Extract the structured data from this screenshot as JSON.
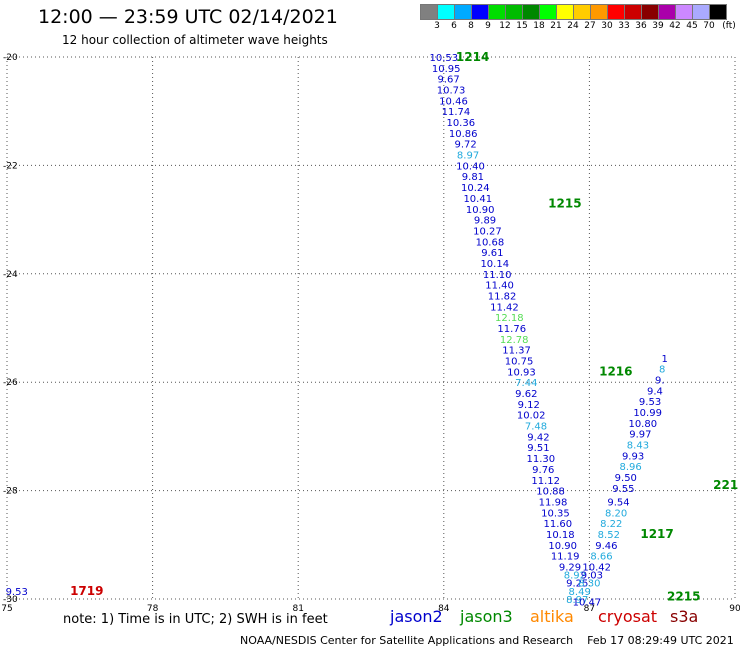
{
  "header": {
    "title": "12:00 — 23:59 UTC 02/14/2021",
    "subtitle": "12 hour collection of altimeter wave heights"
  },
  "colorbar": {
    "unit": "(ft)",
    "labels": [
      "3",
      "6",
      "8",
      "9",
      "12",
      "15",
      "18",
      "21",
      "24",
      "27",
      "30",
      "33",
      "36",
      "39",
      "42",
      "45",
      "70"
    ],
    "colors": [
      "#808080",
      "#00ffff",
      "#00aaff",
      "#0000ff",
      "#00dd00",
      "#00bb00",
      "#008800",
      "#00ff00",
      "#ffff00",
      "#ffcc00",
      "#ff9900",
      "#ff0000",
      "#cc0000",
      "#880000",
      "#aa00aa",
      "#cc88ff",
      "#aaaaff",
      "#000000"
    ]
  },
  "map": {
    "lon_ticks": [
      "75",
      "78",
      "81",
      "84",
      "87",
      "90"
    ],
    "lat_ticks": [
      "-20",
      "-22",
      "-24",
      "-26",
      "-28",
      "-30"
    ],
    "lon_range": [
      75,
      90
    ],
    "lat_range": [
      -20,
      -30
    ]
  },
  "tracks": [
    {
      "label": "1214",
      "satellite": "jason3",
      "lon": 84.25,
      "lat": -20.0
    },
    {
      "label": "1215",
      "satellite": "jason3",
      "lon": 86.15,
      "lat": -22.7
    },
    {
      "label": "1216",
      "satellite": "jason3",
      "lon": 87.2,
      "lat": -25.8
    },
    {
      "label": "1217",
      "satellite": "jason3",
      "lon": 88.05,
      "lat": -28.8
    },
    {
      "label": "2215",
      "satellite": "jason3",
      "lon": 88.6,
      "lat": -29.95
    },
    {
      "label": "221",
      "satellite": "jason3",
      "lon": 89.55,
      "lat": -27.9
    },
    {
      "label": "1719",
      "satellite": "cryosat",
      "lon": 76.3,
      "lat": -29.85
    }
  ],
  "observations": [
    {
      "v": "10.53",
      "lon": 84.0,
      "lat": -20.0,
      "c": "#0000cc"
    },
    {
      "v": "10.95",
      "lon": 84.05,
      "lat": -20.2,
      "c": "#0000cc"
    },
    {
      "v": "9.67",
      "lon": 84.1,
      "lat": -20.4,
      "c": "#0000cc"
    },
    {
      "v": "10.73",
      "lon": 84.15,
      "lat": -20.6,
      "c": "#0000cc"
    },
    {
      "v": "10.46",
      "lon": 84.2,
      "lat": -20.8,
      "c": "#0000cc"
    },
    {
      "v": "11.74",
      "lon": 84.25,
      "lat": -21.0,
      "c": "#0000cc"
    },
    {
      "v": "10.36",
      "lon": 84.35,
      "lat": -21.2,
      "c": "#0000cc"
    },
    {
      "v": "10.86",
      "lon": 84.4,
      "lat": -21.4,
      "c": "#0000cc"
    },
    {
      "v": "9.72",
      "lon": 84.45,
      "lat": -21.6,
      "c": "#0000cc"
    },
    {
      "v": "8.97",
      "lon": 84.5,
      "lat": -21.8,
      "c": "#22aadd"
    },
    {
      "v": "10.40",
      "lon": 84.55,
      "lat": -22.0,
      "c": "#0000cc"
    },
    {
      "v": "9.81",
      "lon": 84.6,
      "lat": -22.2,
      "c": "#0000cc"
    },
    {
      "v": "10.24",
      "lon": 84.65,
      "lat": -22.4,
      "c": "#0000cc"
    },
    {
      "v": "10.41",
      "lon": 84.7,
      "lat": -22.6,
      "c": "#0000cc"
    },
    {
      "v": "10.90",
      "lon": 84.75,
      "lat": -22.8,
      "c": "#0000cc"
    },
    {
      "v": "9.89",
      "lon": 84.85,
      "lat": -23.0,
      "c": "#0000cc"
    },
    {
      "v": "10.27",
      "lon": 84.9,
      "lat": -23.2,
      "c": "#0000cc"
    },
    {
      "v": "10.68",
      "lon": 84.95,
      "lat": -23.4,
      "c": "#0000cc"
    },
    {
      "v": "9.61",
      "lon": 85.0,
      "lat": -23.6,
      "c": "#0000cc"
    },
    {
      "v": "10.14",
      "lon": 85.05,
      "lat": -23.8,
      "c": "#0000cc"
    },
    {
      "v": "11.10",
      "lon": 85.1,
      "lat": -24.0,
      "c": "#0000cc"
    },
    {
      "v": "11.40",
      "lon": 85.15,
      "lat": -24.2,
      "c": "#0000cc"
    },
    {
      "v": "11.82",
      "lon": 85.2,
      "lat": -24.4,
      "c": "#0000cc"
    },
    {
      "v": "11.42",
      "lon": 85.25,
      "lat": -24.6,
      "c": "#0000cc"
    },
    {
      "v": "12.18",
      "lon": 85.35,
      "lat": -24.8,
      "c": "#55dd55"
    },
    {
      "v": "11.76",
      "lon": 85.4,
      "lat": -25.0,
      "c": "#0000cc"
    },
    {
      "v": "12.78",
      "lon": 85.45,
      "lat": -25.2,
      "c": "#55dd55"
    },
    {
      "v": "11.37",
      "lon": 85.5,
      "lat": -25.4,
      "c": "#0000cc"
    },
    {
      "v": "10.75",
      "lon": 85.55,
      "lat": -25.6,
      "c": "#0000cc"
    },
    {
      "v": "10.93",
      "lon": 85.6,
      "lat": -25.8,
      "c": "#0000cc"
    },
    {
      "v": "7.44",
      "lon": 85.7,
      "lat": -26.0,
      "c": "#22aadd"
    },
    {
      "v": "9.62",
      "lon": 85.7,
      "lat": -26.2,
      "c": "#0000cc"
    },
    {
      "v": "9.12",
      "lon": 85.75,
      "lat": -26.4,
      "c": "#0000cc"
    },
    {
      "v": "10.02",
      "lon": 85.8,
      "lat": -26.6,
      "c": "#0000cc"
    },
    {
      "v": "7.48",
      "lon": 85.9,
      "lat": -26.8,
      "c": "#22aadd"
    },
    {
      "v": "9.42",
      "lon": 85.95,
      "lat": -27.0,
      "c": "#0000cc"
    },
    {
      "v": "9.51",
      "lon": 85.95,
      "lat": -27.2,
      "c": "#0000cc"
    },
    {
      "v": "11.30",
      "lon": 86.0,
      "lat": -27.4,
      "c": "#0000cc"
    },
    {
      "v": "9.76",
      "lon": 86.05,
      "lat": -27.6,
      "c": "#0000cc"
    },
    {
      "v": "11.12",
      "lon": 86.1,
      "lat": -27.8,
      "c": "#0000cc"
    },
    {
      "v": "10.88",
      "lon": 86.2,
      "lat": -28.0,
      "c": "#0000cc"
    },
    {
      "v": "11.98",
      "lon": 86.25,
      "lat": -28.2,
      "c": "#0000cc"
    },
    {
      "v": "10.35",
      "lon": 86.3,
      "lat": -28.4,
      "c": "#0000cc"
    },
    {
      "v": "11.60",
      "lon": 86.35,
      "lat": -28.6,
      "c": "#0000cc"
    },
    {
      "v": "10.18",
      "lon": 86.4,
      "lat": -28.8,
      "c": "#0000cc"
    },
    {
      "v": "10.90",
      "lon": 86.45,
      "lat": -29.0,
      "c": "#0000cc"
    },
    {
      "v": "11.19",
      "lon": 86.5,
      "lat": -29.2,
      "c": "#0000cc"
    },
    {
      "v": "9.29",
      "lon": 86.6,
      "lat": -29.4,
      "c": "#0000cc"
    },
    {
      "v": "8.92",
      "lon": 86.7,
      "lat": -29.55,
      "c": "#22aadd"
    },
    {
      "v": "9.25",
      "lon": 86.75,
      "lat": -29.7,
      "c": "#0000cc"
    },
    {
      "v": "8.49",
      "lon": 86.8,
      "lat": -29.85,
      "c": "#22aadd"
    },
    {
      "v": "8.97",
      "lon": 86.75,
      "lat": -30.0,
      "c": "#22aadd"
    },
    {
      "v": "10.47",
      "lon": 86.95,
      "lat": -30.05,
      "c": "#0000cc"
    },
    {
      "v": "8.30",
      "lon": 87.0,
      "lat": -29.7,
      "c": "#22aadd"
    },
    {
      "v": "9.03",
      "lon": 87.05,
      "lat": -29.55,
      "c": "#0000cc"
    },
    {
      "v": "10.42",
      "lon": 87.15,
      "lat": -29.4,
      "c": "#0000cc"
    },
    {
      "v": "8.66",
      "lon": 87.25,
      "lat": -29.2,
      "c": "#22aadd"
    },
    {
      "v": "9.46",
      "lon": 87.35,
      "lat": -29.0,
      "c": "#0000cc"
    },
    {
      "v": "8.52",
      "lon": 87.4,
      "lat": -28.8,
      "c": "#22aadd"
    },
    {
      "v": "8.22",
      "lon": 87.45,
      "lat": -28.6,
      "c": "#22aadd"
    },
    {
      "v": "8.20",
      "lon": 87.55,
      "lat": -28.4,
      "c": "#22aadd"
    },
    {
      "v": "9.54",
      "lon": 87.6,
      "lat": -28.2,
      "c": "#0000cc"
    },
    {
      "v": "9.55",
      "lon": 87.7,
      "lat": -27.95,
      "c": "#0000cc"
    },
    {
      "v": "9.50",
      "lon": 87.75,
      "lat": -27.75,
      "c": "#0000cc"
    },
    {
      "v": "8.96",
      "lon": 87.85,
      "lat": -27.55,
      "c": "#22aadd"
    },
    {
      "v": "9.93",
      "lon": 87.9,
      "lat": -27.35,
      "c": "#0000cc"
    },
    {
      "v": "8.43",
      "lon": 88.0,
      "lat": -27.15,
      "c": "#22aadd"
    },
    {
      "v": "9.97",
      "lon": 88.05,
      "lat": -26.95,
      "c": "#0000cc"
    },
    {
      "v": "10.80",
      "lon": 88.1,
      "lat": -26.75,
      "c": "#0000cc"
    },
    {
      "v": "10.99",
      "lon": 88.2,
      "lat": -26.55,
      "c": "#0000cc"
    },
    {
      "v": "9.53",
      "lon": 88.25,
      "lat": -26.35,
      "c": "#0000cc"
    },
    {
      "v": "9.4",
      "lon": 88.35,
      "lat": -26.15,
      "c": "#0000cc"
    },
    {
      "v": "9.",
      "lon": 88.45,
      "lat": -25.95,
      "c": "#0000cc"
    },
    {
      "v": "8",
      "lon": 88.5,
      "lat": -25.75,
      "c": "#22aadd"
    },
    {
      "v": "1",
      "lon": 88.55,
      "lat": -25.55,
      "c": "#0000cc"
    },
    {
      "v": "9.53",
      "lon": 75.2,
      "lat": -29.85,
      "c": "#0000cc"
    }
  ],
  "footer": {
    "note": "note:  1) Time is in UTC;  2) SWH is in feet",
    "legend": [
      {
        "name": "jason2",
        "color": "#0000cc"
      },
      {
        "name": "jason3",
        "color": "#008800"
      },
      {
        "name": "altika",
        "color": "#ff8800"
      },
      {
        "name": "cryosat",
        "color": "#cc0000"
      },
      {
        "name": "s3a",
        "color": "#880000"
      }
    ],
    "credit": "NOAA/NESDIS Center for Satellite Applications and Research    Feb 17 08:29:49 UTC 2021"
  }
}
